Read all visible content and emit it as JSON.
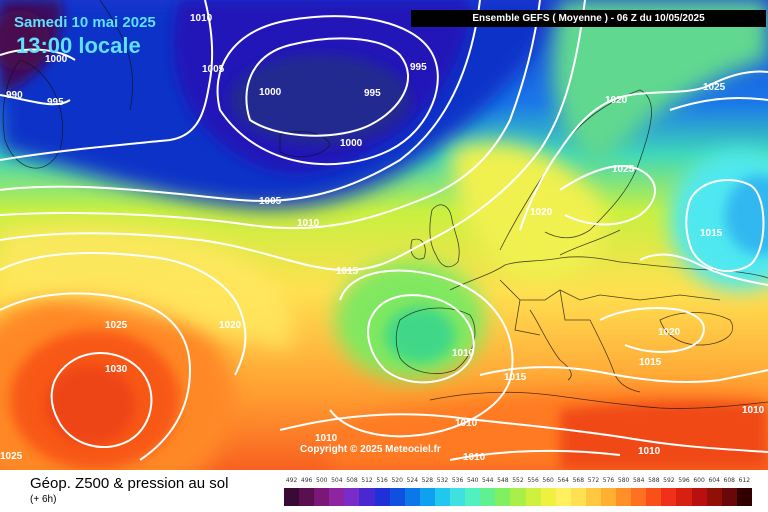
{
  "header": {
    "date": "Samedi 10 mai 2025",
    "local_time": "13:00 locale",
    "run_info": "Ensemble GEFS  ( Moyenne )  -  06 Z du 10/05/2025"
  },
  "copyright": "Copyright © 2025 Meteociel.fr",
  "footer": {
    "title": "Géop. Z500 & pression au sol",
    "subtitle": "(+ 6h)"
  },
  "legend": {
    "values": [
      "492",
      "496",
      "500",
      "504",
      "508",
      "512",
      "516",
      "520",
      "524",
      "528",
      "532",
      "536",
      "540",
      "544",
      "548",
      "552",
      "556",
      "560",
      "564",
      "568",
      "572",
      "576",
      "580",
      "584",
      "588",
      "592",
      "596",
      "600",
      "604",
      "608",
      "612"
    ],
    "colors": [
      "#3a0a36",
      "#5a1050",
      "#7a1878",
      "#8f24a0",
      "#7a2cc8",
      "#4a28d0",
      "#2030d8",
      "#1050e0",
      "#0c78e8",
      "#10a0f0",
      "#20c8f0",
      "#40e0e0",
      "#50f0c0",
      "#60f090",
      "#80f060",
      "#a8f048",
      "#d0f040",
      "#f0f040",
      "#fff060",
      "#ffe050",
      "#ffc840",
      "#ffb030",
      "#ff9028",
      "#ff7020",
      "#f85018",
      "#f03018",
      "#d82010",
      "#b81010",
      "#901008",
      "#680808",
      "#300000"
    ]
  },
  "isobars": [
    {
      "text": "1010"
    },
    {
      "text": "1000"
    },
    {
      "text": "1005"
    },
    {
      "text": "990"
    },
    {
      "text": "995"
    },
    {
      "text": "1000"
    },
    {
      "text": "995"
    },
    {
      "text": "995"
    },
    {
      "text": "1000"
    },
    {
      "text": "1005"
    },
    {
      "text": "1010"
    },
    {
      "text": "1015"
    },
    {
      "text": "1020"
    },
    {
      "text": "1025"
    },
    {
      "text": "1030"
    },
    {
      "text": "1025"
    },
    {
      "text": "1020"
    },
    {
      "text": "1025"
    },
    {
      "text": "1025"
    },
    {
      "text": "1020"
    },
    {
      "text": "1015"
    },
    {
      "text": "1020"
    },
    {
      "text": "1015"
    },
    {
      "text": "1010"
    },
    {
      "text": "1015"
    },
    {
      "text": "1010"
    },
    {
      "text": "1010"
    },
    {
      "text": "1010"
    },
    {
      "text": "1010"
    },
    {
      "text": "1010"
    }
  ]
}
